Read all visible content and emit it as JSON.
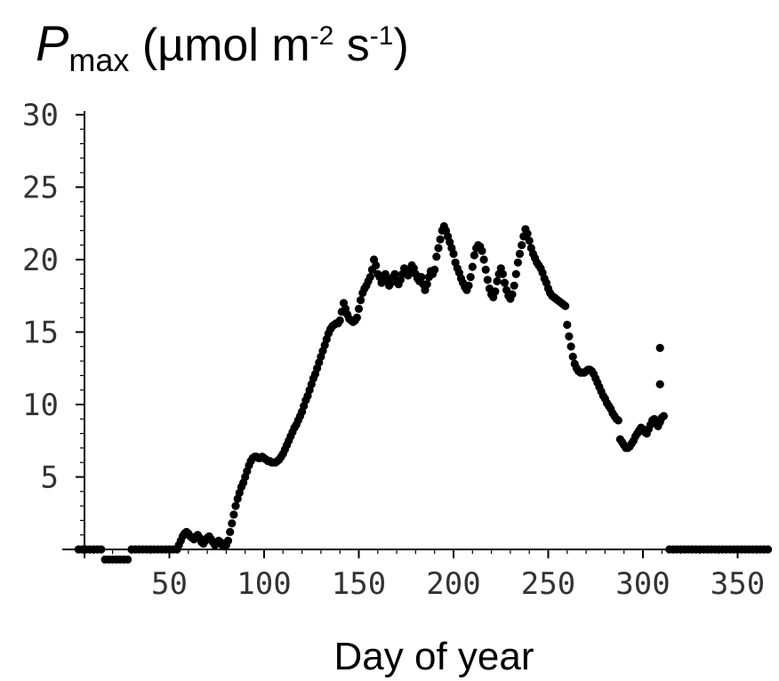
{
  "chart_data": {
    "type": "scatter",
    "title": {
      "symbol": "P",
      "subscript": "max",
      "unit_open": " (µmol m",
      "exp1": "-2",
      "unit_mid": " s",
      "exp2": "-1",
      "unit_close": ")"
    },
    "xlabel": "Day of year",
    "ylabel": "",
    "xlim": [
      0,
      370
    ],
    "ylim": [
      0,
      30
    ],
    "x_ticks": [
      50,
      100,
      150,
      200,
      250,
      300,
      350
    ],
    "y_ticks": [
      5,
      10,
      15,
      20,
      25,
      30
    ],
    "grid": false,
    "marker_color": "#000000",
    "series": [
      {
        "points": [
          [
            2,
            0
          ],
          [
            4,
            0
          ],
          [
            6,
            0
          ],
          [
            8,
            0
          ],
          [
            10,
            0
          ],
          [
            12,
            0
          ],
          [
            14,
            0
          ],
          [
            16,
            -0.7
          ],
          [
            18,
            -0.7
          ],
          [
            20,
            -0.7
          ],
          [
            22,
            -0.7
          ],
          [
            24,
            -0.7
          ],
          [
            26,
            -0.7
          ],
          [
            28,
            -0.7
          ],
          [
            30,
            0
          ],
          [
            32,
            0
          ],
          [
            34,
            0
          ],
          [
            36,
            0
          ],
          [
            38,
            0
          ],
          [
            40,
            0
          ],
          [
            42,
            0
          ],
          [
            44,
            0
          ],
          [
            46,
            0
          ],
          [
            48,
            0
          ],
          [
            50,
            0
          ],
          [
            52,
            0
          ],
          [
            54,
            0
          ],
          [
            55,
            0.3
          ],
          [
            56,
            0.6
          ],
          [
            57,
            0.9
          ],
          [
            58,
            1.1
          ],
          [
            59,
            1.2
          ],
          [
            60,
            1.1
          ],
          [
            61,
            0.9
          ],
          [
            62,
            0.8
          ],
          [
            63,
            0.7
          ],
          [
            64,
            0.9
          ],
          [
            65,
            1.0
          ],
          [
            66,
            0.8
          ],
          [
            67,
            0.5
          ],
          [
            68,
            0.4
          ],
          [
            69,
            0.6
          ],
          [
            70,
            0.8
          ],
          [
            71,
            0.9
          ],
          [
            72,
            0.7
          ],
          [
            73,
            0.5
          ],
          [
            74,
            0.3
          ],
          [
            75,
            0.4
          ],
          [
            76,
            0.6
          ],
          [
            77,
            0.5
          ],
          [
            78,
            0.3
          ],
          [
            79,
            0.2
          ],
          [
            80,
            0.3
          ],
          [
            81,
            0.6
          ],
          [
            82,
            1.2
          ],
          [
            83,
            1.8
          ],
          [
            84,
            2.4
          ],
          [
            85,
            3.0
          ],
          [
            86,
            3.5
          ],
          [
            87,
            3.9
          ],
          [
            88,
            4.3
          ],
          [
            89,
            4.6
          ],
          [
            90,
            5.0
          ],
          [
            91,
            5.4
          ],
          [
            92,
            5.8
          ],
          [
            93,
            6.1
          ],
          [
            94,
            6.3
          ],
          [
            95,
            6.4
          ],
          [
            96,
            6.4
          ],
          [
            97,
            6.3
          ],
          [
            98,
            6.3
          ],
          [
            99,
            6.4
          ],
          [
            100,
            6.3
          ],
          [
            101,
            6.2
          ],
          [
            102,
            6.1
          ],
          [
            103,
            6.1
          ],
          [
            104,
            6.0
          ],
          [
            105,
            6.0
          ],
          [
            106,
            6.0
          ],
          [
            107,
            6.1
          ],
          [
            108,
            6.2
          ],
          [
            109,
            6.4
          ],
          [
            110,
            6.6
          ],
          [
            111,
            6.9
          ],
          [
            112,
            7.2
          ],
          [
            113,
            7.5
          ],
          [
            114,
            7.8
          ],
          [
            115,
            8.1
          ],
          [
            116,
            8.4
          ],
          [
            117,
            8.6
          ],
          [
            118,
            8.9
          ],
          [
            119,
            9.2
          ],
          [
            120,
            9.5
          ],
          [
            121,
            9.9
          ],
          [
            122,
            10.3
          ],
          [
            123,
            10.6
          ],
          [
            124,
            11.0
          ],
          [
            125,
            11.4
          ],
          [
            126,
            11.8
          ],
          [
            127,
            12.1
          ],
          [
            128,
            12.5
          ],
          [
            129,
            12.9
          ],
          [
            130,
            13.3
          ],
          [
            131,
            13.7
          ],
          [
            132,
            14.1
          ],
          [
            133,
            14.5
          ],
          [
            134,
            14.9
          ],
          [
            135,
            15.2
          ],
          [
            136,
            15.4
          ],
          [
            137,
            15.5
          ],
          [
            138,
            15.6
          ],
          [
            139,
            15.6
          ],
          [
            140,
            15.8
          ],
          [
            141,
            16.4
          ],
          [
            142,
            17.0
          ],
          [
            143,
            16.6
          ],
          [
            144,
            16.2
          ],
          [
            145,
            15.9
          ],
          [
            146,
            15.8
          ],
          [
            147,
            15.7
          ],
          [
            148,
            15.8
          ],
          [
            149,
            16.0
          ],
          [
            150,
            16.6
          ],
          [
            151,
            17.2
          ],
          [
            152,
            17.7
          ],
          [
            153,
            18.0
          ],
          [
            154,
            18.2
          ],
          [
            155,
            18.5
          ],
          [
            156,
            18.8
          ],
          [
            157,
            19.3
          ],
          [
            158,
            20.0
          ],
          [
            159,
            19.6
          ],
          [
            160,
            19.0
          ],
          [
            161,
            18.8
          ],
          [
            162,
            18.4
          ],
          [
            163,
            18.6
          ],
          [
            164,
            19.0
          ],
          [
            165,
            18.6
          ],
          [
            166,
            18.2
          ],
          [
            167,
            18.4
          ],
          [
            168,
            18.8
          ],
          [
            169,
            19.0
          ],
          [
            170,
            18.6
          ],
          [
            171,
            18.3
          ],
          [
            172,
            18.6
          ],
          [
            173,
            19.0
          ],
          [
            174,
            19.4
          ],
          [
            175,
            19.2
          ],
          [
            176,
            18.9
          ],
          [
            177,
            19.3
          ],
          [
            178,
            19.6
          ],
          [
            179,
            19.4
          ],
          [
            180,
            19.0
          ],
          [
            181,
            18.7
          ],
          [
            182,
            18.5
          ],
          [
            183,
            18.8
          ],
          [
            184,
            18.3
          ],
          [
            185,
            17.9
          ],
          [
            186,
            18.3
          ],
          [
            187,
            18.8
          ],
          [
            188,
            19.2
          ],
          [
            189,
            19.0
          ],
          [
            190,
            19.3
          ],
          [
            191,
            20.2
          ],
          [
            192,
            20.8
          ],
          [
            193,
            21.4
          ],
          [
            194,
            22.0
          ],
          [
            195,
            22.3
          ],
          [
            196,
            22.0
          ],
          [
            197,
            21.6
          ],
          [
            198,
            21.2
          ],
          [
            199,
            20.8
          ],
          [
            200,
            20.4
          ],
          [
            201,
            19.8
          ],
          [
            202,
            19.4
          ],
          [
            203,
            19.1
          ],
          [
            204,
            18.7
          ],
          [
            205,
            18.4
          ],
          [
            206,
            18.1
          ],
          [
            207,
            17.9
          ],
          [
            208,
            18.2
          ],
          [
            209,
            18.8
          ],
          [
            210,
            19.5
          ],
          [
            211,
            20.3
          ],
          [
            212,
            20.8
          ],
          [
            213,
            21.0
          ],
          [
            214,
            20.9
          ],
          [
            215,
            20.6
          ],
          [
            216,
            20.0
          ],
          [
            217,
            19.3
          ],
          [
            218,
            18.6
          ],
          [
            219,
            18.0
          ],
          [
            220,
            17.6
          ],
          [
            221,
            17.4
          ],
          [
            222,
            17.8
          ],
          [
            223,
            18.5
          ],
          [
            224,
            19.0
          ],
          [
            225,
            19.4
          ],
          [
            226,
            19.0
          ],
          [
            227,
            18.4
          ],
          [
            228,
            17.9
          ],
          [
            229,
            17.5
          ],
          [
            230,
            17.3
          ],
          [
            231,
            17.6
          ],
          [
            232,
            18.2
          ],
          [
            233,
            19.0
          ],
          [
            234,
            19.8
          ],
          [
            235,
            20.4
          ],
          [
            236,
            21.0
          ],
          [
            237,
            21.6
          ],
          [
            238,
            22.1
          ],
          [
            239,
            21.8
          ],
          [
            240,
            21.3
          ],
          [
            241,
            20.8
          ],
          [
            242,
            20.4
          ],
          [
            243,
            20.1
          ],
          [
            244,
            19.8
          ],
          [
            245,
            19.6
          ],
          [
            246,
            19.4
          ],
          [
            247,
            19.1
          ],
          [
            248,
            18.7
          ],
          [
            249,
            18.4
          ],
          [
            250,
            18.0
          ],
          [
            251,
            17.7
          ],
          [
            252,
            17.5
          ],
          [
            253,
            17.4
          ],
          [
            254,
            17.3
          ],
          [
            255,
            17.2
          ],
          [
            256,
            17.1
          ],
          [
            257,
            17.0
          ],
          [
            258,
            16.9
          ],
          [
            259,
            16.8
          ],
          [
            260,
            15.5
          ],
          [
            261,
            14.7
          ],
          [
            262,
            14.0
          ],
          [
            263,
            13.3
          ],
          [
            264,
            12.8
          ],
          [
            265,
            12.5
          ],
          [
            266,
            12.3
          ],
          [
            267,
            12.2
          ],
          [
            268,
            12.2
          ],
          [
            269,
            12.2
          ],
          [
            270,
            12.3
          ],
          [
            271,
            12.4
          ],
          [
            272,
            12.4
          ],
          [
            273,
            12.3
          ],
          [
            274,
            12.1
          ],
          [
            275,
            11.8
          ],
          [
            276,
            11.5
          ],
          [
            277,
            11.2
          ],
          [
            278,
            10.9
          ],
          [
            279,
            10.6
          ],
          [
            280,
            10.4
          ],
          [
            281,
            10.1
          ],
          [
            282,
            9.9
          ],
          [
            283,
            9.7
          ],
          [
            284,
            9.4
          ],
          [
            285,
            9.2
          ],
          [
            286,
            9.0
          ],
          [
            287,
            8.9
          ],
          [
            288,
            7.6
          ],
          [
            289,
            7.4
          ],
          [
            290,
            7.2
          ],
          [
            291,
            7.0
          ],
          [
            292,
            7.0
          ],
          [
            293,
            7.1
          ],
          [
            294,
            7.3
          ],
          [
            295,
            7.5
          ],
          [
            296,
            7.8
          ],
          [
            297,
            8.0
          ],
          [
            298,
            8.2
          ],
          [
            299,
            8.4
          ],
          [
            300,
            8.3
          ],
          [
            301,
            8.1
          ],
          [
            302,
            8.0
          ],
          [
            303,
            8.3
          ],
          [
            304,
            8.6
          ],
          [
            305,
            8.9
          ],
          [
            306,
            9.0
          ],
          [
            307,
            8.8
          ],
          [
            308,
            8.5
          ],
          [
            309,
            8.8
          ],
          [
            310,
            9.1
          ],
          [
            311,
            9.2
          ],
          [
            309,
            13.9
          ],
          [
            309,
            11.4
          ],
          [
            314,
            0
          ],
          [
            316,
            0
          ],
          [
            318,
            0
          ],
          [
            320,
            0
          ],
          [
            322,
            0
          ],
          [
            324,
            0
          ],
          [
            326,
            0
          ],
          [
            328,
            0
          ],
          [
            330,
            0
          ],
          [
            332,
            0
          ],
          [
            334,
            0
          ],
          [
            336,
            0
          ],
          [
            338,
            0
          ],
          [
            340,
            0
          ],
          [
            342,
            0
          ],
          [
            344,
            0
          ],
          [
            346,
            0
          ],
          [
            348,
            0
          ],
          [
            350,
            0
          ],
          [
            352,
            0
          ],
          [
            354,
            0
          ],
          [
            356,
            0
          ],
          [
            358,
            0
          ],
          [
            360,
            0
          ],
          [
            362,
            0
          ],
          [
            364,
            0
          ],
          [
            366,
            0
          ]
        ]
      }
    ]
  }
}
